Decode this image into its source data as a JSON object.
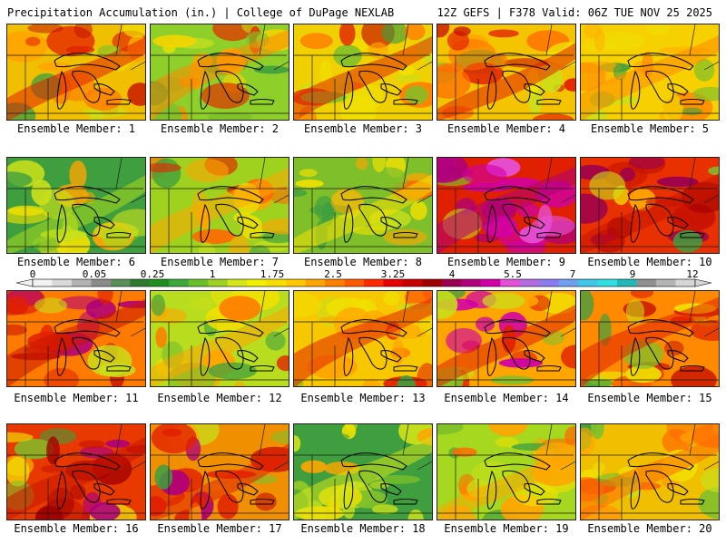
{
  "header": {
    "title_left": "Precipitation Accumulation (in.) | College of DuPage NEXLAB",
    "title_right": "12Z GEFS | F378 Valid: 06Z TUE NOV 25 2025"
  },
  "colorbar": {
    "labels": [
      "0",
      "0.05",
      "0.25",
      "1",
      "1.75",
      "2.5",
      "3.25",
      "4",
      "5.5",
      "7",
      "9",
      "12"
    ],
    "colors": [
      "#f2f2f2",
      "#d9d9d9",
      "#b3b3b3",
      "#8c8c8c",
      "#5a8f5a",
      "#2f7a2f",
      "#1f8f1f",
      "#3da83d",
      "#6abf2a",
      "#9fd21e",
      "#d4e61a",
      "#f0f000",
      "#f7e000",
      "#ffc800",
      "#ffa500",
      "#ff8000",
      "#ff5a00",
      "#ff2a00",
      "#e60000",
      "#c80000",
      "#a00000",
      "#9a0050",
      "#b0007a",
      "#d000a8",
      "#e650d8",
      "#b56be0",
      "#8a7bf0",
      "#6fa0f0",
      "#40c8e8",
      "#30e0e0",
      "#20b8b8",
      "#909090",
      "#b4b4b4",
      "#d6d6d6"
    ]
  },
  "panels": [
    {
      "label": "Ensemble Member: 1",
      "base": "#f0c000",
      "hot": [
        "#e22000",
        "#c81400",
        "#ff7a00"
      ],
      "wet": 0.55
    },
    {
      "label": "Ensemble Member: 2",
      "base": "#8fcf2a",
      "hot": [
        "#ff8a00",
        "#e23200",
        "#f5d400"
      ],
      "wet": 0.35
    },
    {
      "label": "Ensemble Member: 3",
      "base": "#f0d000",
      "hot": [
        "#e02a00",
        "#ff7a00",
        "#c81400"
      ],
      "wet": 0.5
    },
    {
      "label": "Ensemble Member: 4",
      "base": "#f5c400",
      "hot": [
        "#e22000",
        "#ff6a00",
        "#c81400"
      ],
      "wet": 0.6
    },
    {
      "label": "Ensemble Member: 5",
      "base": "#f7d000",
      "hot": [
        "#ff8a00",
        "#e23a00",
        "#ffb000"
      ],
      "wet": 0.45
    },
    {
      "label": "Ensemble Member: 6",
      "base": "#3f9f3f",
      "hot": [
        "#a9d81e",
        "#f0e000",
        "#ff9a00"
      ],
      "wet": 0.2
    },
    {
      "label": "Ensemble Member: 7",
      "base": "#9fd21e",
      "hot": [
        "#ffa500",
        "#ff6a00",
        "#e02800"
      ],
      "wet": 0.35
    },
    {
      "label": "Ensemble Member: 8",
      "base": "#7fc02a",
      "hot": [
        "#f5e000",
        "#ffa500",
        "#ff5a00"
      ],
      "wet": 0.3
    },
    {
      "label": "Ensemble Member: 9",
      "base": "#e02000",
      "hot": [
        "#b0007a",
        "#d000a8",
        "#e650d8"
      ],
      "wet": 0.85
    },
    {
      "label": "Ensemble Member: 10",
      "base": "#e83000",
      "hot": [
        "#c81400",
        "#a00000",
        "#9a0050"
      ],
      "wet": 0.75
    },
    {
      "label": "Ensemble Member: 11",
      "base": "#ff7a00",
      "hot": [
        "#c81400",
        "#e22000",
        "#b0007a"
      ],
      "wet": 0.7
    },
    {
      "label": "Ensemble Member: 12",
      "base": "#b8dc1e",
      "hot": [
        "#ffa500",
        "#ff7a00",
        "#e02800"
      ],
      "wet": 0.35
    },
    {
      "label": "Ensemble Member: 13",
      "base": "#f7c800",
      "hot": [
        "#e22000",
        "#ff5a00",
        "#ff9a00"
      ],
      "wet": 0.5
    },
    {
      "label": "Ensemble Member: 14",
      "base": "#ffa500",
      "hot": [
        "#e02000",
        "#c81400",
        "#d000a8"
      ],
      "wet": 0.65
    },
    {
      "label": "Ensemble Member: 15",
      "base": "#ff8a00",
      "hot": [
        "#e22000",
        "#ff5a00",
        "#c81400"
      ],
      "wet": 0.6
    },
    {
      "label": "Ensemble Member: 16",
      "base": "#e83a00",
      "hot": [
        "#c81400",
        "#a00000",
        "#b0007a"
      ],
      "wet": 0.8
    },
    {
      "label": "Ensemble Member: 17",
      "base": "#f09000",
      "hot": [
        "#e22000",
        "#c81400",
        "#b0007a"
      ],
      "wet": 0.7
    },
    {
      "label": "Ensemble Member: 18",
      "base": "#3f9f3f",
      "hot": [
        "#d4e61a",
        "#f0e000",
        "#ffa500"
      ],
      "wet": 0.2
    },
    {
      "label": "Ensemble Member: 19",
      "base": "#a5d81e",
      "hot": [
        "#ffa500",
        "#ff6a00",
        "#f0e000"
      ],
      "wet": 0.35
    },
    {
      "label": "Ensemble Member: 20",
      "base": "#f0c000",
      "hot": [
        "#ff6a00",
        "#e22000",
        "#ff9a00"
      ],
      "wet": 0.5
    }
  ]
}
